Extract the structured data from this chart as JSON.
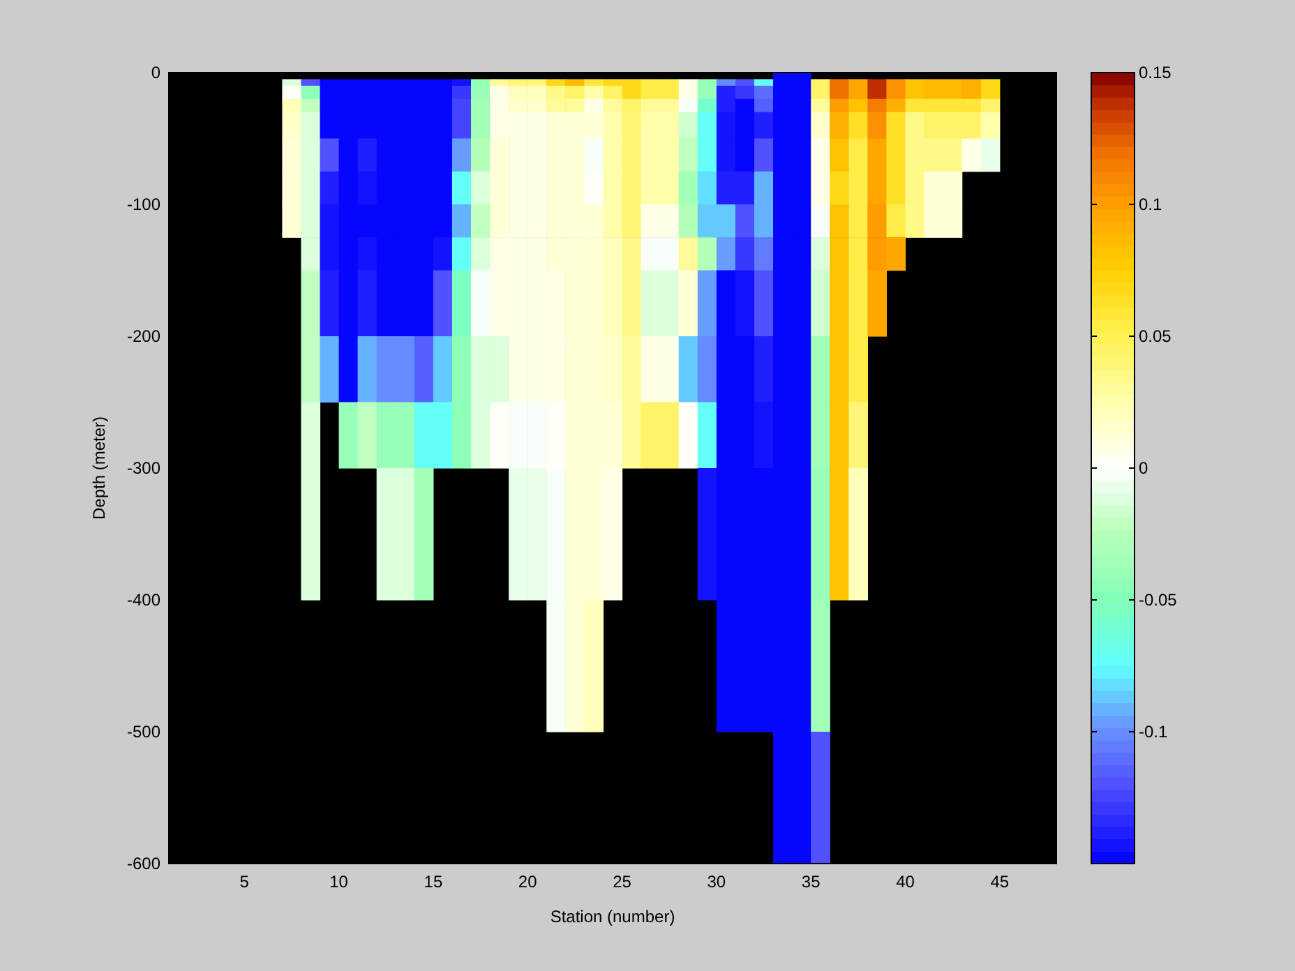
{
  "chart_data": {
    "type": "heatmap",
    "xlabel": "Station (number)",
    "ylabel": "Depth (meter)",
    "x": [
      1.5,
      2.5,
      3.5,
      4.5,
      5.5,
      6.5,
      7.5,
      8.5,
      9.5,
      10.5,
      11.5,
      12.5,
      13.5,
      14.5,
      15.5,
      16.5,
      17.5,
      18.5,
      19.5,
      20.5,
      21.5,
      22.5,
      23.5,
      24.5,
      25.5,
      26.5,
      27.5,
      28.5,
      29.5,
      30.5,
      31.5,
      32.5,
      33.5,
      34.5,
      35.5,
      36.5,
      37.5,
      38.5,
      39.5,
      40.5,
      41.5,
      42.5,
      43.5,
      44.5,
      45.5,
      46.5,
      47.5
    ],
    "y": [
      -2.5,
      -7.5,
      -15,
      -25,
      -40,
      -62.5,
      -87.5,
      -112.5,
      -137.5,
      -175,
      -225,
      -275,
      -350,
      -450,
      -550
    ],
    "xlim": [
      1,
      48
    ],
    "xticks": [
      5,
      10,
      15,
      20,
      25,
      30,
      35,
      40,
      45
    ],
    "ylim": [
      -600,
      0
    ],
    "yticks": [
      -600,
      -500,
      -400,
      -300,
      -200,
      -100,
      0
    ],
    "clim": [
      -0.15,
      0.15
    ],
    "cticks": [
      -0.1,
      -0.05,
      0,
      0.05,
      0.1,
      0.15
    ],
    "cells": [
      [
        null,
        null,
        null,
        null,
        null,
        null,
        null,
        null,
        null,
        null,
        null,
        null,
        null,
        null,
        null,
        null,
        null,
        null,
        null,
        null,
        null,
        null,
        null,
        null,
        null,
        null,
        null,
        null,
        null,
        null,
        null,
        null,
        -0.15,
        -0.15,
        null,
        null,
        null,
        null,
        null,
        null,
        null,
        null,
        null,
        null,
        null,
        null,
        null
      ],
      [
        null,
        null,
        null,
        null,
        null,
        null,
        -0.01,
        -0.12,
        -0.15,
        -0.15,
        -0.15,
        -0.15,
        -0.15,
        -0.15,
        -0.15,
        -0.145,
        -0.038,
        0.03,
        0.04,
        0.04,
        0.07,
        0.085,
        0.06,
        0.07,
        0.07,
        0.055,
        0.055,
        0.005,
        -0.038,
        -0.1,
        -0.12,
        -0.075,
        -0.15,
        -0.15,
        0.045,
        0.12,
        0.095,
        0.14,
        0.105,
        0.08,
        0.085,
        0.085,
        0.09,
        0.07,
        null,
        null,
        null
      ],
      [
        null,
        null,
        null,
        null,
        null,
        null,
        0,
        -0.045,
        -0.15,
        -0.15,
        -0.15,
        -0.15,
        -0.15,
        -0.15,
        -0.15,
        -0.13,
        -0.038,
        0.005,
        0.02,
        0.02,
        0.035,
        0.045,
        0.025,
        0.045,
        0.07,
        0.055,
        0.055,
        0.005,
        -0.038,
        -0.14,
        -0.13,
        -0.11,
        -0.15,
        -0.15,
        0.045,
        0.12,
        0.095,
        0.14,
        0.105,
        0.08,
        0.085,
        0.085,
        0.09,
        0.07,
        null,
        null,
        null
      ],
      [
        null,
        null,
        null,
        null,
        null,
        null,
        0.02,
        -0.022,
        -0.15,
        -0.15,
        -0.15,
        -0.15,
        -0.15,
        -0.15,
        -0.15,
        -0.125,
        -0.035,
        0.005,
        0.015,
        0.015,
        0.03,
        0.03,
        0.006,
        0.03,
        0.045,
        0.03,
        0.03,
        -0.003,
        -0.06,
        -0.14,
        -0.15,
        -0.115,
        -0.15,
        -0.15,
        0.03,
        0.1,
        0.08,
        0.115,
        0.09,
        0.06,
        0.06,
        0.06,
        0.06,
        0.045,
        null,
        null,
        null
      ],
      [
        null,
        null,
        null,
        null,
        null,
        null,
        0.015,
        -0.01,
        -0.15,
        -0.15,
        -0.15,
        -0.15,
        -0.15,
        -0.15,
        -0.15,
        -0.125,
        -0.035,
        0.008,
        0.006,
        0.006,
        0.012,
        0.01,
        0.01,
        0.025,
        0.042,
        0.028,
        0.028,
        -0.015,
        -0.072,
        -0.145,
        -0.15,
        -0.14,
        -0.15,
        -0.15,
        0.015,
        0.09,
        0.062,
        0.105,
        0.062,
        0.035,
        0.045,
        0.045,
        0.045,
        0.025,
        null,
        null,
        null
      ],
      [
        null,
        null,
        null,
        null,
        null,
        null,
        0.012,
        -0.014,
        -0.12,
        -0.15,
        -0.14,
        -0.15,
        -0.15,
        -0.15,
        -0.15,
        -0.095,
        -0.025,
        0.012,
        0.008,
        0.008,
        0.014,
        0.012,
        -0.002,
        0.025,
        0.042,
        0.028,
        0.028,
        -0.022,
        -0.072,
        -0.145,
        -0.15,
        -0.12,
        -0.15,
        -0.15,
        0.005,
        0.08,
        0.055,
        0.095,
        0.062,
        0.035,
        0.035,
        0.035,
        0.006,
        -0.007,
        null,
        null,
        null
      ],
      [
        null,
        null,
        null,
        null,
        null,
        null,
        0.01,
        -0.014,
        -0.14,
        -0.15,
        -0.145,
        -0.15,
        -0.15,
        -0.15,
        -0.15,
        -0.072,
        -0.01,
        0.012,
        0.008,
        0.008,
        0.01,
        0.014,
        0,
        0.025,
        0.042,
        0.028,
        0.028,
        -0.035,
        -0.08,
        -0.14,
        -0.14,
        -0.09,
        -0.15,
        -0.15,
        0.005,
        0.07,
        0.055,
        0.095,
        0.062,
        0.035,
        0.01,
        0.01,
        null,
        null,
        null,
        null,
        null
      ],
      [
        null,
        null,
        null,
        null,
        null,
        null,
        0.01,
        -0.014,
        -0.145,
        -0.15,
        -0.15,
        -0.15,
        -0.15,
        -0.15,
        -0.15,
        -0.09,
        -0.02,
        0.01,
        0.008,
        0.008,
        0.01,
        0.012,
        0.012,
        0.025,
        0.042,
        0.008,
        0.008,
        -0.025,
        -0.085,
        -0.085,
        -0.12,
        -0.09,
        -0.15,
        -0.15,
        -0.003,
        0.08,
        0.055,
        0.1,
        0.055,
        0.035,
        0.01,
        0.01,
        null,
        null,
        null,
        null,
        null
      ],
      [
        null,
        null,
        null,
        null,
        null,
        null,
        null,
        -0.014,
        -0.145,
        -0.15,
        -0.145,
        -0.15,
        -0.15,
        -0.15,
        -0.145,
        -0.072,
        -0.01,
        0.005,
        0.005,
        0.005,
        0.01,
        0.012,
        0.012,
        0.02,
        0.035,
        -0.003,
        -0.003,
        0.03,
        -0.025,
        -0.095,
        -0.13,
        -0.105,
        -0.15,
        -0.15,
        -0.01,
        0.08,
        0.055,
        0.1,
        0.095,
        null,
        null,
        null,
        null,
        null,
        null,
        null,
        null
      ],
      [
        null,
        null,
        null,
        null,
        null,
        null,
        null,
        -0.022,
        -0.14,
        -0.15,
        -0.14,
        -0.15,
        -0.15,
        -0.15,
        -0.12,
        -0.055,
        -0.003,
        0.008,
        0.005,
        0.005,
        0.008,
        0.012,
        0.012,
        0.02,
        0.035,
        -0.01,
        -0.01,
        0.012,
        -0.095,
        -0.15,
        -0.145,
        -0.12,
        -0.15,
        -0.15,
        -0.015,
        0.08,
        0.055,
        0.095,
        null,
        null,
        null,
        null,
        null,
        null,
        null,
        null,
        null
      ],
      [
        null,
        null,
        null,
        null,
        null,
        null,
        null,
        -0.022,
        -0.09,
        -0.15,
        -0.09,
        -0.1,
        -0.1,
        -0.115,
        -0.085,
        -0.045,
        -0.01,
        -0.01,
        0.006,
        0.006,
        0.006,
        0.01,
        0.012,
        0.016,
        0.03,
        0.005,
        0.005,
        -0.085,
        -0.1,
        -0.15,
        -0.15,
        -0.14,
        -0.15,
        -0.15,
        -0.035,
        0.08,
        0.055,
        null,
        null,
        null,
        null,
        null,
        null,
        null,
        null,
        null,
        null
      ],
      [
        null,
        null,
        null,
        null,
        null,
        null,
        null,
        -0.014,
        null,
        -0.042,
        -0.022,
        -0.04,
        -0.04,
        -0.075,
        -0.075,
        -0.045,
        -0.01,
        0.004,
        -0.004,
        -0.004,
        0.001,
        0.014,
        0.014,
        0.014,
        0.03,
        0.045,
        0.045,
        0.004,
        -0.075,
        -0.15,
        -0.15,
        -0.145,
        -0.15,
        -0.15,
        -0.035,
        0.08,
        0.04,
        null,
        null,
        null,
        null,
        null,
        null,
        null,
        null,
        null,
        null
      ],
      [
        null,
        null,
        null,
        null,
        null,
        null,
        null,
        -0.012,
        null,
        null,
        null,
        -0.01,
        -0.01,
        -0.035,
        null,
        null,
        null,
        null,
        -0.007,
        -0.007,
        -0.002,
        0.012,
        0.012,
        0.006,
        null,
        null,
        null,
        null,
        -0.145,
        -0.15,
        -0.15,
        -0.15,
        -0.15,
        -0.15,
        -0.04,
        0.08,
        0.02,
        null,
        null,
        null,
        null,
        null,
        null,
        null,
        null,
        null,
        null
      ],
      [
        null,
        null,
        null,
        null,
        null,
        null,
        null,
        null,
        null,
        null,
        null,
        null,
        null,
        null,
        null,
        null,
        null,
        null,
        null,
        null,
        -0.002,
        0.012,
        0.02,
        null,
        null,
        null,
        null,
        null,
        null,
        -0.15,
        -0.15,
        -0.15,
        -0.15,
        -0.15,
        -0.035,
        null,
        null,
        null,
        null,
        null,
        null,
        null,
        null,
        null,
        null,
        null,
        null
      ],
      [
        null,
        null,
        null,
        null,
        null,
        null,
        null,
        null,
        null,
        null,
        null,
        null,
        null,
        null,
        null,
        null,
        null,
        null,
        null,
        null,
        null,
        null,
        null,
        null,
        null,
        null,
        null,
        null,
        null,
        null,
        null,
        null,
        -0.15,
        -0.15,
        -0.12,
        null,
        null,
        null,
        null,
        null,
        null,
        null,
        null,
        null,
        null,
        null,
        null
      ]
    ]
  }
}
